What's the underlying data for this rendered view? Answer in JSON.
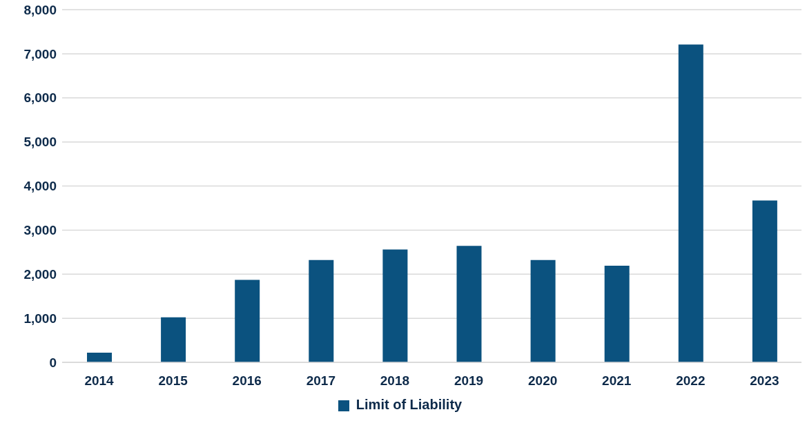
{
  "chart_data": {
    "type": "bar",
    "categories": [
      "2014",
      "2015",
      "2016",
      "2017",
      "2018",
      "2019",
      "2020",
      "2021",
      "2022",
      "2023"
    ],
    "series": [
      {
        "name": "Limit of Liability",
        "color": "#0b527f",
        "values": [
          220,
          1020,
          1870,
          2320,
          2560,
          2640,
          2320,
          2190,
          7210,
          3670
        ]
      }
    ],
    "ylim": [
      0,
      8000
    ],
    "yticks": [
      {
        "value": 0,
        "label": "0"
      },
      {
        "value": 1000,
        "label": "1,000"
      },
      {
        "value": 2000,
        "label": "2,000"
      },
      {
        "value": 3000,
        "label": "3,000"
      },
      {
        "value": 4000,
        "label": "4,000"
      },
      {
        "value": 5000,
        "label": "5,000"
      },
      {
        "value": 6000,
        "label": "6,000"
      },
      {
        "value": 7000,
        "label": "7,000"
      },
      {
        "value": 8000,
        "label": "8,000"
      }
    ],
    "grid": "y",
    "legend": "bottom"
  }
}
